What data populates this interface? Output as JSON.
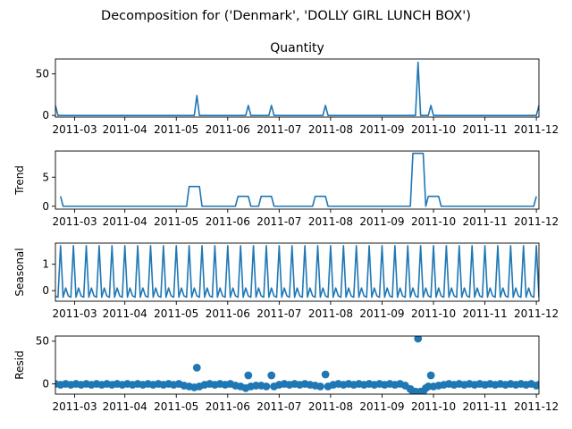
{
  "figure": {
    "suptitle": "Decomposition for ('Denmark', 'DOLLY GIRL LUNCH BOX')"
  },
  "chart_data": [
    {
      "type": "line",
      "title": "Quantity",
      "ylabel": "",
      "ylim": [
        -2,
        68
      ],
      "yticks": [
        0,
        50
      ],
      "xticks": [
        "2011-03",
        "2011-04",
        "2011-05",
        "2011-06",
        "2011-07",
        "2011-08",
        "2011-09",
        "2011-10",
        "2011-11",
        "2011-12"
      ],
      "color": "#1f77b4",
      "points": [
        [
          0,
          12
        ],
        [
          1,
          0
        ],
        [
          54,
          0
        ],
        [
          55,
          24
        ],
        [
          56,
          0
        ],
        [
          74,
          0
        ],
        [
          75,
          12
        ],
        [
          76,
          0
        ],
        [
          83,
          0
        ],
        [
          84,
          12
        ],
        [
          85,
          0
        ],
        [
          104,
          0
        ],
        [
          105,
          12
        ],
        [
          106,
          0
        ],
        [
          140,
          0
        ],
        [
          141,
          64
        ],
        [
          142,
          0
        ],
        [
          145,
          0
        ],
        [
          146,
          12
        ],
        [
          147,
          0
        ],
        [
          187,
          0
        ],
        [
          188,
          12
        ]
      ]
    },
    {
      "type": "line",
      "title": "",
      "ylabel": "Trend",
      "ylim": [
        -0.5,
        9.5
      ],
      "yticks": [
        0,
        5
      ],
      "xticks": [
        "2011-03",
        "2011-04",
        "2011-05",
        "2011-06",
        "2011-07",
        "2011-08",
        "2011-09",
        "2011-10",
        "2011-11",
        "2011-12"
      ],
      "color": "#1f77b4",
      "points": [
        [
          2,
          1.7
        ],
        [
          3,
          0
        ],
        [
          51,
          0
        ],
        [
          52,
          3.4
        ],
        [
          56,
          3.4
        ],
        [
          57,
          0
        ],
        [
          70,
          0
        ],
        [
          71,
          1.7
        ],
        [
          75,
          1.7
        ],
        [
          76,
          0
        ],
        [
          79,
          0
        ],
        [
          80,
          1.7
        ],
        [
          84,
          1.7
        ],
        [
          85,
          0
        ],
        [
          100,
          0
        ],
        [
          101,
          1.7
        ],
        [
          105,
          1.7
        ],
        [
          106,
          0
        ],
        [
          138,
          0
        ],
        [
          139,
          9.1
        ],
        [
          143,
          9.1
        ],
        [
          144,
          0
        ],
        [
          145,
          1.7
        ],
        [
          149,
          1.7
        ],
        [
          150,
          0
        ],
        [
          186,
          0
        ],
        [
          187,
          1.7
        ]
      ]
    },
    {
      "type": "line",
      "title": "",
      "ylabel": "Seasonal",
      "ylim": [
        -0.4,
        1.8
      ],
      "yticks": [
        0,
        1
      ],
      "xticks": [
        "2011-03",
        "2011-04",
        "2011-05",
        "2011-06",
        "2011-07",
        "2011-08",
        "2011-09",
        "2011-10",
        "2011-11",
        "2011-12"
      ],
      "color": "#1f77b4",
      "period": 5,
      "period_values": [
        -0.2,
        -0.25,
        1.7,
        -0.25,
        0.1
      ]
    },
    {
      "type": "scatter",
      "title": "",
      "ylabel": "Resid",
      "ylim": [
        -12,
        56
      ],
      "yticks": [
        0,
        50
      ],
      "xticks": [
        "2011-03",
        "2011-04",
        "2011-05",
        "2011-06",
        "2011-07",
        "2011-08",
        "2011-09",
        "2011-10",
        "2011-11",
        "2011-12"
      ],
      "color": "#1f77b4",
      "points": [
        [
          0,
          0
        ],
        [
          2,
          -1
        ],
        [
          4,
          0
        ],
        [
          6,
          -1
        ],
        [
          8,
          0
        ],
        [
          10,
          -1
        ],
        [
          12,
          0
        ],
        [
          14,
          -1
        ],
        [
          16,
          0
        ],
        [
          18,
          -1
        ],
        [
          20,
          0
        ],
        [
          22,
          -1
        ],
        [
          24,
          0
        ],
        [
          26,
          -1
        ],
        [
          28,
          0
        ],
        [
          30,
          -1
        ],
        [
          32,
          0
        ],
        [
          34,
          -1
        ],
        [
          36,
          0
        ],
        [
          38,
          -1
        ],
        [
          40,
          0
        ],
        [
          42,
          -1
        ],
        [
          44,
          0
        ],
        [
          46,
          -1
        ],
        [
          48,
          0
        ],
        [
          50,
          -2
        ],
        [
          52,
          -3
        ],
        [
          54,
          -4
        ],
        [
          55,
          19
        ],
        [
          56,
          -3
        ],
        [
          58,
          -1
        ],
        [
          60,
          0
        ],
        [
          62,
          -1
        ],
        [
          64,
          0
        ],
        [
          66,
          -1
        ],
        [
          68,
          0
        ],
        [
          70,
          -2
        ],
        [
          72,
          -3
        ],
        [
          74,
          -5
        ],
        [
          75,
          10
        ],
        [
          76,
          -3
        ],
        [
          78,
          -2
        ],
        [
          80,
          -2
        ],
        [
          82,
          -3
        ],
        [
          84,
          10
        ],
        [
          85,
          -3
        ],
        [
          87,
          -1
        ],
        [
          89,
          0
        ],
        [
          91,
          -1
        ],
        [
          93,
          0
        ],
        [
          95,
          -1
        ],
        [
          97,
          0
        ],
        [
          99,
          -1
        ],
        [
          101,
          -2
        ],
        [
          103,
          -3
        ],
        [
          105,
          11
        ],
        [
          106,
          -3
        ],
        [
          108,
          -1
        ],
        [
          110,
          0
        ],
        [
          112,
          -1
        ],
        [
          114,
          0
        ],
        [
          116,
          -1
        ],
        [
          118,
          0
        ],
        [
          120,
          -1
        ],
        [
          122,
          0
        ],
        [
          124,
          -1
        ],
        [
          126,
          0
        ],
        [
          128,
          -1
        ],
        [
          130,
          0
        ],
        [
          132,
          -1
        ],
        [
          134,
          0
        ],
        [
          136,
          -2
        ],
        [
          138,
          -6
        ],
        [
          139,
          -9
        ],
        [
          140,
          -9
        ],
        [
          141,
          53
        ],
        [
          142,
          -9
        ],
        [
          143,
          -9
        ],
        [
          144,
          -5
        ],
        [
          145,
          -3
        ],
        [
          146,
          10
        ],
        [
          147,
          -3
        ],
        [
          149,
          -2
        ],
        [
          151,
          -1
        ],
        [
          153,
          0
        ],
        [
          155,
          -1
        ],
        [
          157,
          0
        ],
        [
          159,
          -1
        ],
        [
          161,
          0
        ],
        [
          163,
          -1
        ],
        [
          165,
          0
        ],
        [
          167,
          -1
        ],
        [
          169,
          0
        ],
        [
          171,
          -1
        ],
        [
          173,
          0
        ],
        [
          175,
          -1
        ],
        [
          177,
          0
        ],
        [
          179,
          -1
        ],
        [
          181,
          0
        ],
        [
          183,
          -1
        ],
        [
          185,
          0
        ],
        [
          187,
          -2
        ],
        [
          188,
          -1
        ]
      ]
    }
  ]
}
